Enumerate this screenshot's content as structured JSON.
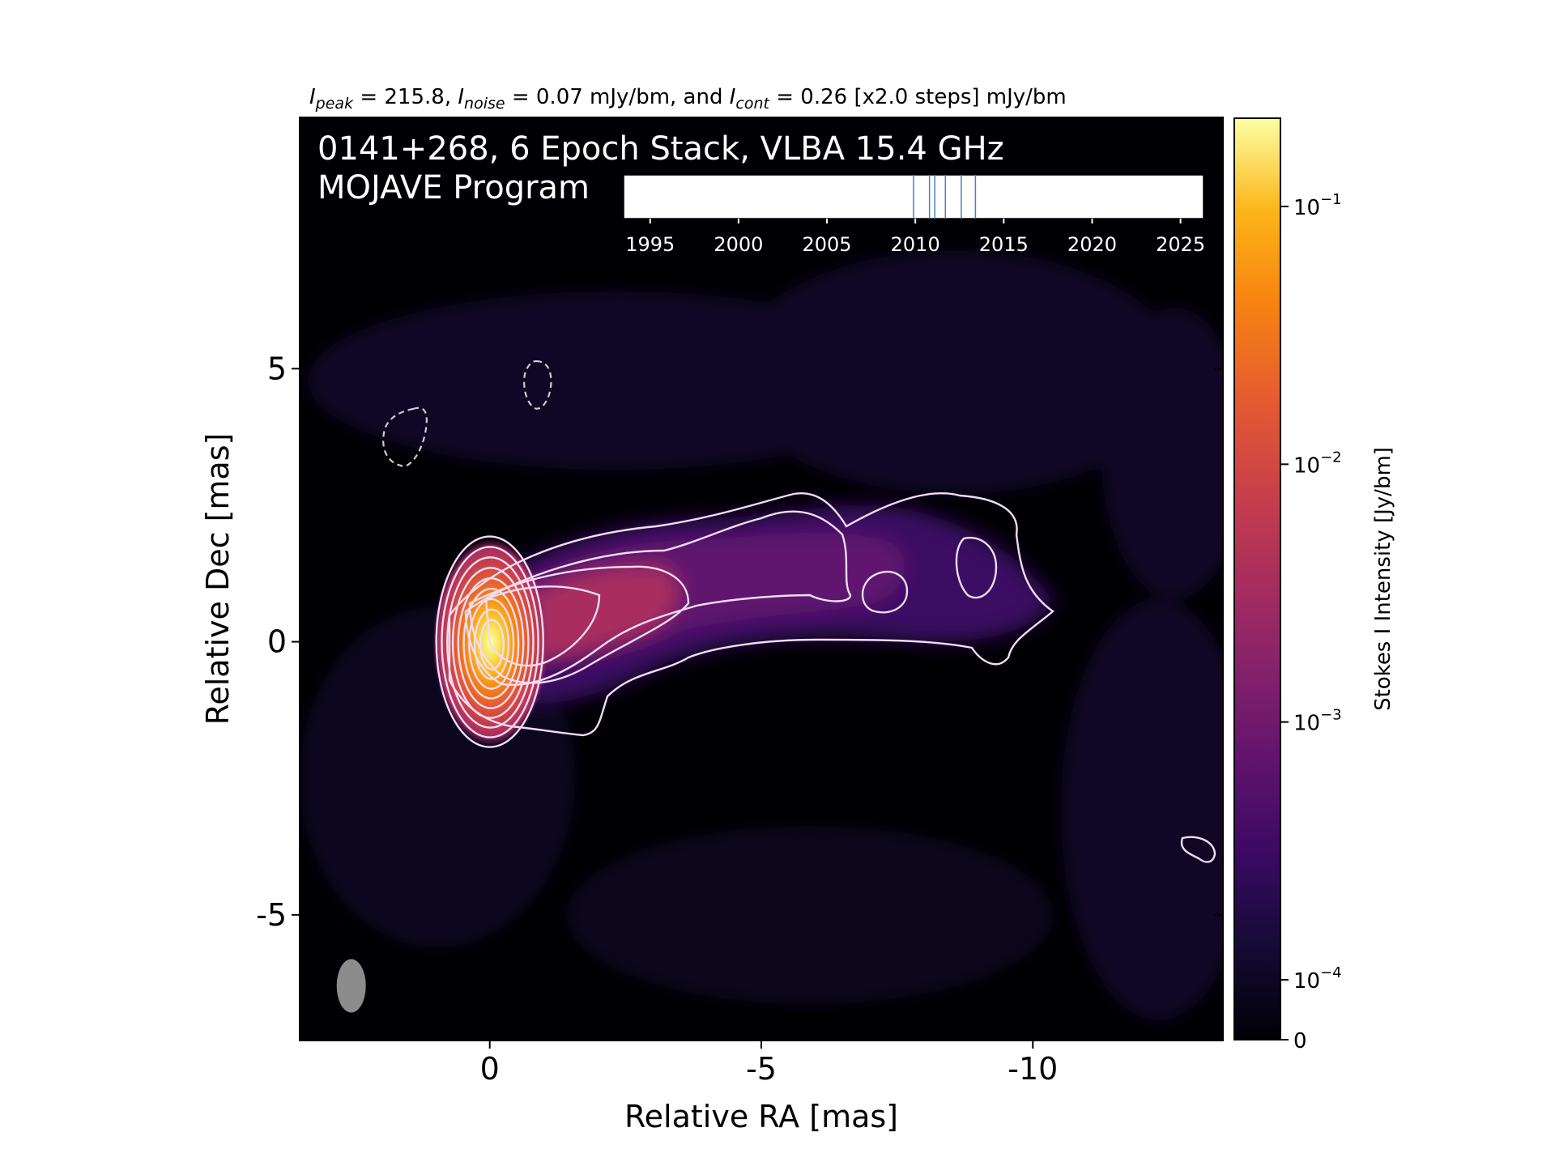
{
  "header": {
    "stats_parts": [
      {
        "text": "I",
        "style": "italic"
      },
      {
        "text": "peak",
        "style": "italic-sub"
      },
      {
        "text": " = 215.8, ",
        "style": "normal"
      },
      {
        "text": "I",
        "style": "italic"
      },
      {
        "text": "noise",
        "style": "italic-sub"
      },
      {
        "text": " = 0.07 mJy/bm, and ",
        "style": "normal"
      },
      {
        "text": "I",
        "style": "italic"
      },
      {
        "text": "cont",
        "style": "italic-sub"
      },
      {
        "text": " = 0.26 [x2.0 steps] mJy/bm",
        "style": "normal"
      }
    ]
  },
  "chart_data": {
    "type": "heatmap",
    "title_line1": "0141+268, 6 Epoch Stack, VLBA 15.4 GHz",
    "title_line2": "MOJAVE Program",
    "xlabel": "Relative RA [mas]",
    "ylabel": "Relative Dec [mas]",
    "xlim": [
      3.5,
      -13.5
    ],
    "ylim": [
      -7.3,
      9.6
    ],
    "xticks": [
      0,
      -5,
      -10
    ],
    "xtick_labels": [
      "0",
      "-5",
      "-10"
    ],
    "yticks": [
      5,
      0,
      -5
    ],
    "ytick_labels": [
      "5",
      "0",
      "-5"
    ],
    "core": {
      "ra": 0,
      "dec": 0
    },
    "beam": {
      "ra": 2.55,
      "dec": -6.3
    },
    "contour_count": 9,
    "negative_contour_count": 2,
    "colormap": "inferno",
    "colorbar": {
      "label": "Stokes I Intensity [Jy/bm]",
      "scale": "log",
      "tick_labels": [
        {
          "base": "10",
          "exp": "−1",
          "value": 0.1
        },
        {
          "base": "10",
          "exp": "−2",
          "value": 0.01
        },
        {
          "base": "10",
          "exp": "−3",
          "value": 0.001
        },
        {
          "base": "10",
          "exp": "−4",
          "value": 0.0001
        },
        {
          "base": "0",
          "exp": "",
          "value": 0
        }
      ]
    },
    "epoch_timeline": {
      "range": [
        1993.5,
        2026.3
      ],
      "tick_years": [
        1995,
        2000,
        2005,
        2010,
        2015,
        2020,
        2025
      ],
      "tick_labels": [
        "1995",
        "2000",
        "2005",
        "2010",
        "2015",
        "2020",
        "2025"
      ],
      "epochs": [
        2009.9,
        2010.8,
        2011.1,
        2011.7,
        2012.6,
        2013.4
      ]
    }
  },
  "colors": {
    "background": "#000004",
    "contour": "#f0dcf4",
    "negative_contour": "#cccccc",
    "beam": "#8c8c8c",
    "epoch_line": "#4a7fc4"
  }
}
